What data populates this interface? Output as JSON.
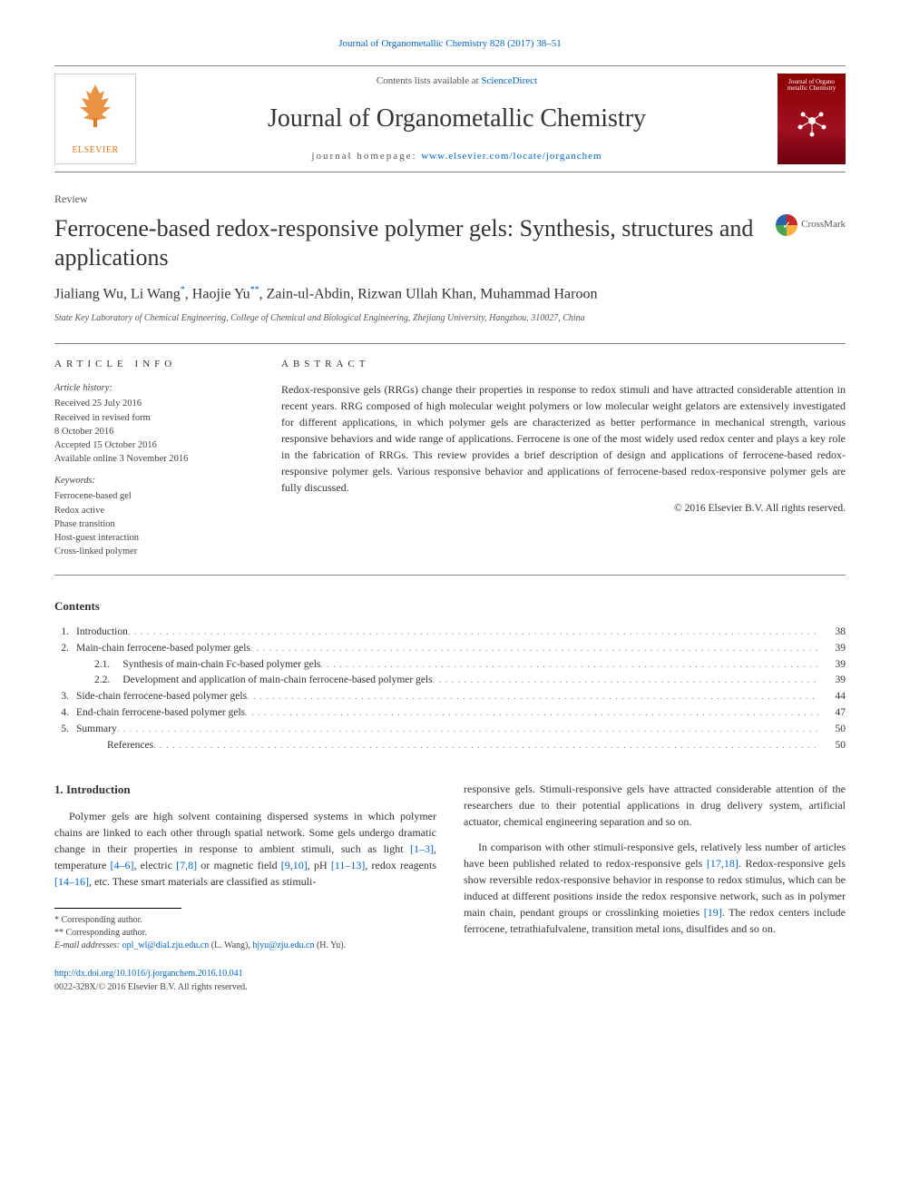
{
  "header": {
    "citation": "Journal of Organometallic Chemistry 828 (2017) 38–51",
    "contents_prefix": "Contents lists available at ",
    "contents_link": "ScienceDirect",
    "journal_name": "Journal of Organometallic Chemistry",
    "homepage_prefix": "journal homepage: ",
    "homepage_link": "www.elsevier.com/locate/jorganchem",
    "publisher": "ELSEVIER",
    "cover_text": "Journal of Organo metallic Chemistry"
  },
  "article": {
    "type": "Review",
    "title": "Ferrocene-based redox-responsive polymer gels: Synthesis, structures and applications",
    "crossmark": "CrossMark",
    "authors_html": "Jialiang Wu, Li Wang<sup>*</sup>, Haojie Yu<sup>**</sup>, Zain-ul-Abdin, Rizwan Ullah Khan, Muhammad Haroon",
    "affiliation": "State Key Laboratory of Chemical Engineering, College of Chemical and Biological Engineering, Zhejiang University, Hangzhou, 310027, China"
  },
  "info": {
    "heading": "ARTICLE INFO",
    "history_label": "Article history:",
    "history": [
      "Received 25 July 2016",
      "Received in revised form",
      "8 October 2016",
      "Accepted 15 October 2016",
      "Available online 3 November 2016"
    ],
    "keywords_label": "Keywords:",
    "keywords": [
      "Ferrocene-based gel",
      "Redox active",
      "Phase transition",
      "Host-guest interaction",
      "Cross-linked polymer"
    ]
  },
  "abstract": {
    "heading": "ABSTRACT",
    "text": "Redox-responsive gels (RRGs) change their properties in response to redox stimuli and have attracted considerable attention in recent years. RRG composed of high molecular weight polymers or low molecular weight gelators are extensively investigated for different applications, in which polymer gels are characterized as better performance in mechanical strength, various responsive behaviors and wide range of applications. Ferrocene is one of the most widely used redox center and plays a key role in the fabrication of RRGs. This review provides a brief description of design and applications of ferrocene-based redox-responsive polymer gels. Various responsive behavior and applications of ferrocene-based redox-responsive polymer gels are fully discussed.",
    "copyright": "© 2016 Elsevier B.V. All rights reserved."
  },
  "contents": {
    "heading": "Contents",
    "items": [
      {
        "num": "1.",
        "label": "Introduction",
        "page": "38",
        "indent": 0
      },
      {
        "num": "2.",
        "label": "Main-chain ferrocene-based polymer gels",
        "page": "39",
        "indent": 0
      },
      {
        "num": "2.1.",
        "label": "Synthesis of main-chain Fc-based polymer gels",
        "page": "39",
        "indent": 1
      },
      {
        "num": "2.2.",
        "label": "Development and application of main-chain ferrocene-based polymer gels",
        "page": "39",
        "indent": 1
      },
      {
        "num": "3.",
        "label": "Side-chain ferrocene-based polymer gels",
        "page": "44",
        "indent": 0
      },
      {
        "num": "4.",
        "label": "End-chain ferrocene-based polymer gels",
        "page": "47",
        "indent": 0
      },
      {
        "num": "5.",
        "label": "Summary",
        "page": "50",
        "indent": 0
      },
      {
        "num": "",
        "label": "References",
        "page": "50",
        "indent": 1
      }
    ]
  },
  "body": {
    "section_heading": "1. Introduction",
    "para1": "Polymer gels are high solvent containing dispersed systems in which polymer chains are linked to each other through spatial network. Some gels undergo dramatic change in their properties in response to ambient stimuli, such as light [1–3], temperature [4–6], electric [7,8] or magnetic field [9,10], pH [11–13], redox reagents [14–16], etc. These smart materials are classified as stimuli-",
    "para2": "responsive gels. Stimuli-responsive gels have attracted considerable attention of the researchers due to their potential applications in drug delivery system, artificial actuator, chemical engineering separation and so on.",
    "para3": "In comparison with other stimuli-responsive gels, relatively less number of articles have been published related to redox-responsive gels [17,18]. Redox-responsive gels show reversible redox-responsive behavior in response to redox stimulus, which can be induced at different positions inside the redox responsive network, such as in polymer main chain, pendant groups or crosslinking moieties [19]. The redox centers include ferrocene, tetrathiafulvalene, transition metal ions, disulfides and so on."
  },
  "footnotes": {
    "f1": "* Corresponding author.",
    "f2": "** Corresponding author.",
    "email_label": "E-mail addresses: ",
    "email1": "opl_wl@dial.zju.edu.cn",
    "email1_name": " (L. Wang), ",
    "email2": "hjyu@zju.edu.cn",
    "email2_name": " (H. Yu)."
  },
  "bottom": {
    "doi": "http://dx.doi.org/10.1016/j.jorganchem.2016.10.041",
    "issn_line": "0022-328X/© 2016 Elsevier B.V. All rights reserved."
  },
  "colors": {
    "link": "#0066cc",
    "elsevier_orange": "#e67817",
    "cover_bg": "#8b0000"
  }
}
